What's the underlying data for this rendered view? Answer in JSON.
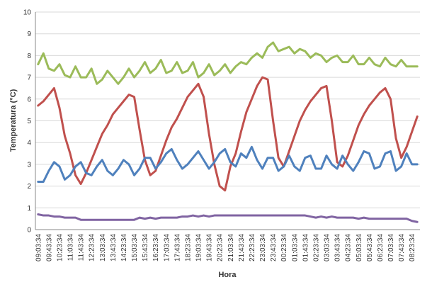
{
  "chart_data": {
    "type": "line",
    "x_label": "Hora",
    "y_label": "Temperatura (°C)",
    "categories": [
      "09:03:34",
      null,
      "09:43:34",
      null,
      "10:23:34",
      null,
      "11:03:34",
      null,
      "11:43:34",
      null,
      "12:23:34",
      null,
      "13:03:34",
      null,
      "13:43:34",
      null,
      "14:23:34",
      null,
      "15:03:34",
      null,
      "15:43:34",
      null,
      "16:23:34",
      null,
      "17:03:34",
      null,
      "17:43:34",
      null,
      "18:23:34",
      null,
      "19:03:34",
      null,
      "19:43:34",
      null,
      "20:23:34",
      null,
      "21:03:34",
      null,
      "21:43:34",
      null,
      "22:23:34",
      null,
      "23:03:34",
      null,
      "23:43:34",
      null,
      "00:23:34",
      null,
      "01:03:34",
      null,
      "01:43:34",
      null,
      "02:23:34",
      null,
      "03:03:34",
      null,
      "03:43:34",
      null,
      "04:23:34",
      null,
      "05:03:34",
      null,
      "05:43:34",
      null,
      "06:23:34",
      null,
      "07:03:34",
      null,
      "07:43:34",
      null,
      "08:23:34",
      null
    ],
    "series": [
      {
        "color": "#9bbb59",
        "values": [
          7.6,
          8.1,
          7.4,
          7.3,
          7.6,
          7.1,
          7.0,
          7.5,
          7.0,
          7.0,
          7.4,
          6.7,
          6.9,
          7.3,
          7.0,
          6.7,
          7.0,
          7.4,
          7.0,
          7.3,
          7.7,
          7.2,
          7.4,
          7.8,
          7.2,
          7.3,
          7.7,
          7.2,
          7.3,
          7.7,
          7.0,
          7.2,
          7.6,
          7.1,
          7.3,
          7.6,
          7.2,
          7.5,
          7.7,
          7.6,
          7.9,
          8.1,
          7.9,
          8.4,
          8.6,
          8.2,
          8.3,
          8.4,
          8.1,
          8.3,
          8.2,
          7.9,
          8.1,
          8.0,
          7.7,
          7.9,
          8.0,
          7.7,
          7.7,
          8.0,
          7.6,
          7.6,
          7.9,
          7.6,
          7.5,
          7.9,
          7.6,
          7.5,
          7.8,
          7.5,
          7.5,
          7.5
        ]
      },
      {
        "color": "#c0504d",
        "values": [
          5.7,
          5.9,
          6.2,
          6.5,
          5.6,
          4.3,
          3.5,
          2.5,
          2.1,
          2.6,
          3.2,
          3.8,
          4.4,
          4.8,
          5.3,
          5.6,
          5.9,
          6.2,
          6.1,
          4.6,
          3.2,
          2.5,
          2.7,
          3.4,
          4.1,
          4.7,
          5.1,
          5.6,
          6.1,
          6.4,
          6.7,
          6.1,
          4.4,
          3.0,
          2.0,
          1.8,
          2.9,
          3.5,
          4.5,
          5.4,
          6.0,
          6.6,
          7.0,
          6.9,
          5.0,
          3.3,
          2.9,
          3.6,
          4.3,
          5.0,
          5.5,
          5.9,
          6.2,
          6.5,
          6.6,
          5.0,
          3.1,
          2.9,
          3.4,
          4.1,
          4.8,
          5.3,
          5.7,
          6.0,
          6.3,
          6.5,
          6.0,
          4.2,
          3.3,
          3.8,
          4.5,
          5.2
        ]
      },
      {
        "color": "#4f81bd",
        "values": [
          2.2,
          2.2,
          2.7,
          3.1,
          2.9,
          2.3,
          2.5,
          2.9,
          3.1,
          2.6,
          2.5,
          2.9,
          3.2,
          2.7,
          2.5,
          2.8,
          3.2,
          3.0,
          2.5,
          2.8,
          3.3,
          3.3,
          2.8,
          3.1,
          3.5,
          3.7,
          3.2,
          2.8,
          3.0,
          3.3,
          3.6,
          3.2,
          2.8,
          3.1,
          3.5,
          3.7,
          3.1,
          2.9,
          3.5,
          3.3,
          3.8,
          3.2,
          2.8,
          3.3,
          3.3,
          2.7,
          2.9,
          3.4,
          2.9,
          2.7,
          3.3,
          3.4,
          2.8,
          2.8,
          3.4,
          3.0,
          2.8,
          3.4,
          3.0,
          2.7,
          3.1,
          3.6,
          3.5,
          2.8,
          2.9,
          3.5,
          3.6,
          2.7,
          2.9,
          3.5,
          3.0,
          3.0
        ]
      },
      {
        "color": "#8064a2",
        "values": [
          0.7,
          0.65,
          0.65,
          0.6,
          0.6,
          0.55,
          0.55,
          0.55,
          0.45,
          0.45,
          0.45,
          0.45,
          0.45,
          0.45,
          0.45,
          0.45,
          0.45,
          0.45,
          0.45,
          0.55,
          0.5,
          0.55,
          0.5,
          0.55,
          0.55,
          0.55,
          0.55,
          0.6,
          0.6,
          0.65,
          0.6,
          0.65,
          0.6,
          0.65,
          0.65,
          0.65,
          0.65,
          0.65,
          0.65,
          0.65,
          0.65,
          0.65,
          0.65,
          0.65,
          0.65,
          0.65,
          0.65,
          0.65,
          0.65,
          0.65,
          0.65,
          0.6,
          0.55,
          0.6,
          0.55,
          0.6,
          0.55,
          0.55,
          0.55,
          0.55,
          0.5,
          0.55,
          0.5,
          0.5,
          0.5,
          0.5,
          0.5,
          0.5,
          0.5,
          0.5,
          0.4,
          0.35
        ]
      }
    ],
    "ylim": [
      0,
      10
    ],
    "yticks": [
      0,
      1,
      2,
      3,
      4,
      5,
      6,
      7,
      8,
      9,
      10
    ],
    "grid": true
  }
}
